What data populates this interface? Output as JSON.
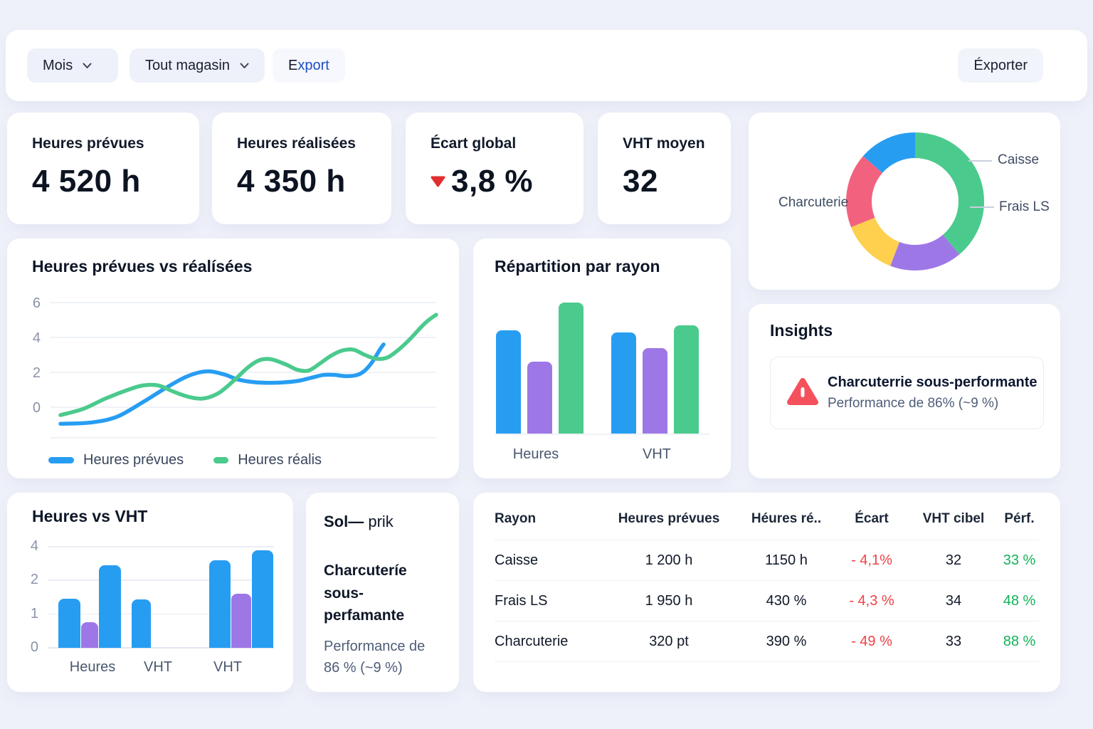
{
  "toolbar": {
    "period": "Mois",
    "store": "Tout magasin",
    "export_first_letter": "E",
    "export_rest": "xport",
    "export_button": "Éxporter"
  },
  "kpis": {
    "k1": {
      "label": "Heures prévues",
      "value": "4 520 h"
    },
    "k2": {
      "label": "Heures réalisées",
      "value": "4 350 h"
    },
    "k3": {
      "label": "Écart global",
      "value": "3,8 %",
      "trend": "down"
    },
    "k4": {
      "label": "VHT moyen",
      "value": "32"
    }
  },
  "insights": {
    "title": "Insights",
    "alert_title": "Charcuterrie sous-performante",
    "alert_desc": "Performance de 86% (~9 %)"
  },
  "note": {
    "title_bold": "Sol—",
    "title_rest": "prik",
    "heading": "Charcuteríe sous-perfamante",
    "desc": "Performance de 86 % (~9 %)"
  },
  "table": {
    "columns": [
      "Rayon",
      "Heures prévues",
      "Héures ré..",
      "Écart",
      "VHT cibel",
      "Pérf."
    ],
    "rows": [
      [
        "Caisse",
        "1 200 h",
        "1150 h",
        "- 4,1%",
        "32",
        "33 %"
      ],
      [
        "Frais LS",
        "1 950 h",
        "430 %",
        "- 4,3 %",
        "34",
        "48 %"
      ],
      [
        "Charcuterie",
        "320 pt",
        "390 %",
        "- 49 %",
        "33",
        "88 %"
      ]
    ]
  },
  "chart_data": [
    {
      "id": "hours_line",
      "type": "line",
      "title": "Heures prévues vs réalísées",
      "yticks": [
        "6",
        "4",
        "2",
        "0",
        ""
      ],
      "ytick_values": [
        6,
        4,
        2,
        0,
        -1.75
      ],
      "ylim": [
        -2,
        6
      ],
      "grid": true,
      "legend_position": "bottom",
      "legend": [
        {
          "label": "Heures prévues",
          "color": "blue"
        },
        {
          "label": "Heures réalis",
          "color": "green"
        }
      ],
      "series": [
        {
          "name": "Heures prévues",
          "color": "blue",
          "points": [
            [
              0,
              -0.95
            ],
            [
              8,
              -0.88
            ],
            [
              15,
              -0.55
            ],
            [
              22,
              0.3
            ],
            [
              28,
              1.1
            ],
            [
              33,
              1.7
            ],
            [
              37,
              2.0
            ],
            [
              40,
              2.05
            ],
            [
              44,
              1.85
            ],
            [
              47,
              1.6
            ],
            [
              51,
              1.45
            ],
            [
              55,
              1.4
            ],
            [
              59,
              1.42
            ],
            [
              63,
              1.5
            ],
            [
              67,
              1.7
            ],
            [
              70,
              1.85
            ],
            [
              73,
              1.85
            ],
            [
              76,
              1.78
            ],
            [
              79,
              1.85
            ],
            [
              81,
              2.1
            ],
            [
              83,
              2.6
            ],
            [
              85,
              3.3
            ],
            [
              86,
              3.6
            ]
          ]
        },
        {
          "name": "Heures réalis",
          "color": "green",
          "points": [
            [
              0,
              -0.45
            ],
            [
              6,
              -0.1
            ],
            [
              12,
              0.5
            ],
            [
              18,
              1.0
            ],
            [
              22,
              1.25
            ],
            [
              26,
              1.25
            ],
            [
              30,
              0.9
            ],
            [
              34,
              0.6
            ],
            [
              38,
              0.5
            ],
            [
              42,
              0.8
            ],
            [
              46,
              1.5
            ],
            [
              50,
              2.3
            ],
            [
              53,
              2.7
            ],
            [
              56,
              2.75
            ],
            [
              60,
              2.45
            ],
            [
              63,
              2.15
            ],
            [
              66,
              2.1
            ],
            [
              69,
              2.5
            ],
            [
              72,
              2.95
            ],
            [
              75,
              3.25
            ],
            [
              78,
              3.3
            ],
            [
              81,
              3.0
            ],
            [
              84,
              2.78
            ],
            [
              87,
              2.85
            ],
            [
              90,
              3.3
            ],
            [
              93,
              3.9
            ],
            [
              96,
              4.6
            ],
            [
              98,
              5.0
            ],
            [
              100,
              5.3
            ]
          ]
        }
      ]
    },
    {
      "id": "repartition",
      "type": "bar",
      "title": "Répartition par rayon",
      "categories": [
        "Heures",
        "VHT"
      ],
      "ylim": [
        0,
        5.2
      ],
      "grid": false,
      "series": [
        {
          "name": "serie-bleue",
          "color": "blue",
          "values": [
            4.1,
            4.0
          ]
        },
        {
          "name": "serie-violette",
          "color": "purple",
          "values": [
            2.85,
            3.4
          ]
        },
        {
          "name": "serie-verte",
          "color": "green",
          "values": [
            5.2,
            4.3
          ]
        }
      ]
    },
    {
      "id": "heures_vs_vht",
      "type": "bar",
      "title": "Heures vs VHT",
      "yticks": [
        0,
        1,
        2,
        4
      ],
      "grid": true,
      "groups": [
        {
          "label": "Heures",
          "bars": [
            {
              "color": "blue",
              "value": 1.45
            },
            {
              "color": "purple",
              "value": 0.77
            },
            {
              "color": "blue",
              "value": 2.9
            }
          ]
        },
        {
          "label": "VHT",
          "bars": [
            {
              "color": "blue",
              "value": 1.43
            }
          ]
        },
        {
          "label": "VHT",
          "bars": [
            {
              "color": "blue",
              "value": 3.2
            },
            {
              "color": "purple",
              "value": 1.6
            },
            {
              "color": "blue",
              "value": 3.8
            }
          ]
        }
      ]
    },
    {
      "id": "repartition_donut",
      "type": "pie",
      "slices": [
        {
          "color": "green",
          "deg": 140
        },
        {
          "color": "purple",
          "deg": 61
        },
        {
          "color": "yellow",
          "deg": 47
        },
        {
          "color": "pink",
          "deg": 63
        },
        {
          "color": "blue",
          "deg": 49
        }
      ],
      "callouts": {
        "right_top": "Caisse",
        "right_mid": "Frais LS",
        "left": "Charcuterie"
      }
    }
  ],
  "colors": {
    "blue": "#279DF2",
    "green": "#4BCA8D",
    "purple": "#9E77E6",
    "yellow": "#FFD04E",
    "pink": "#F2627E",
    "kpi_triangle": "#E02F2F",
    "alert": "#F4515C",
    "negative": "#EF4146",
    "positive": "#13B15A",
    "axis_text": "#8A93A8",
    "grid": "#E9EDF4"
  }
}
